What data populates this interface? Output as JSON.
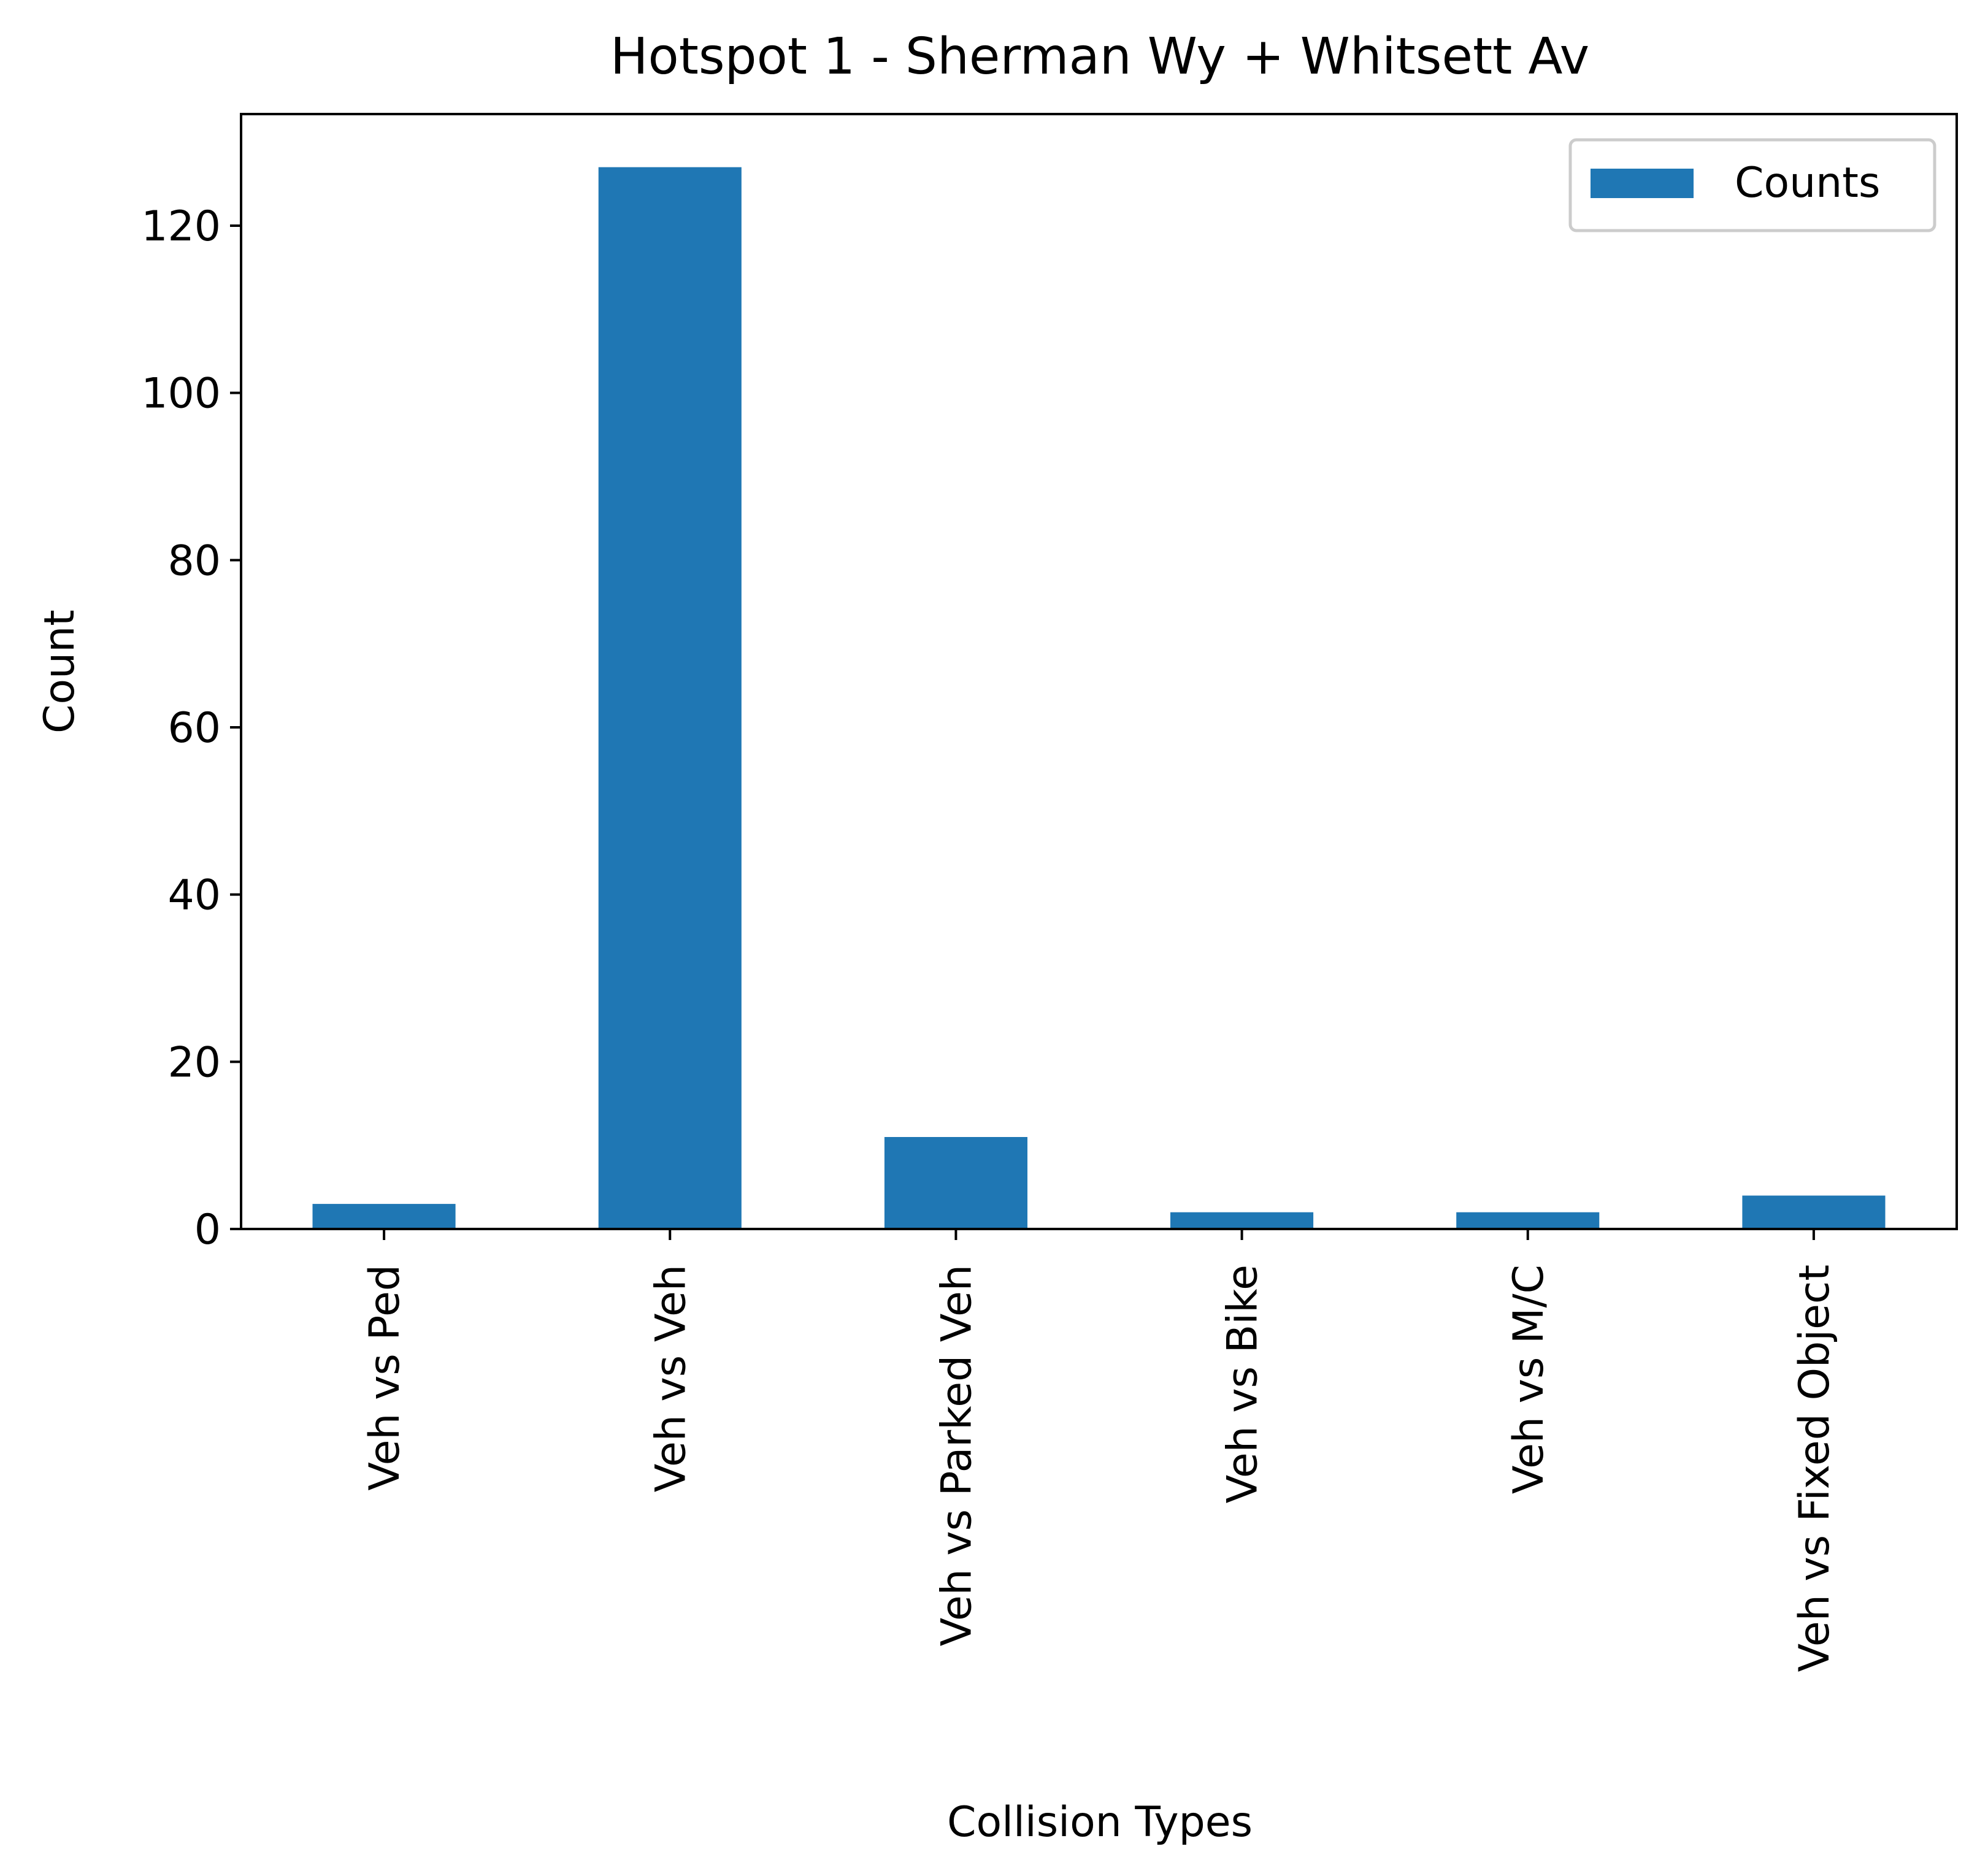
{
  "chart_data": {
    "type": "bar",
    "title": "Hotspot 1 - Sherman Wy + Whitsett Av",
    "xlabel": "Collision Types",
    "ylabel": "Count",
    "categories": [
      "Veh vs Ped",
      "Veh vs Veh",
      "Veh vs Parked Veh",
      "Veh vs Bike",
      "Veh vs M/C",
      "Veh vs Fixed Object"
    ],
    "series": [
      {
        "name": "Counts",
        "values": [
          3,
          127,
          11,
          2,
          2,
          4
        ],
        "color": "#1f77b4"
      }
    ],
    "ylim": [
      0,
      133.35
    ],
    "yticks": [
      0,
      20,
      40,
      60,
      80,
      100,
      120
    ],
    "grid": false,
    "legend": {
      "position": "top-right",
      "entries": [
        "Counts"
      ]
    }
  }
}
